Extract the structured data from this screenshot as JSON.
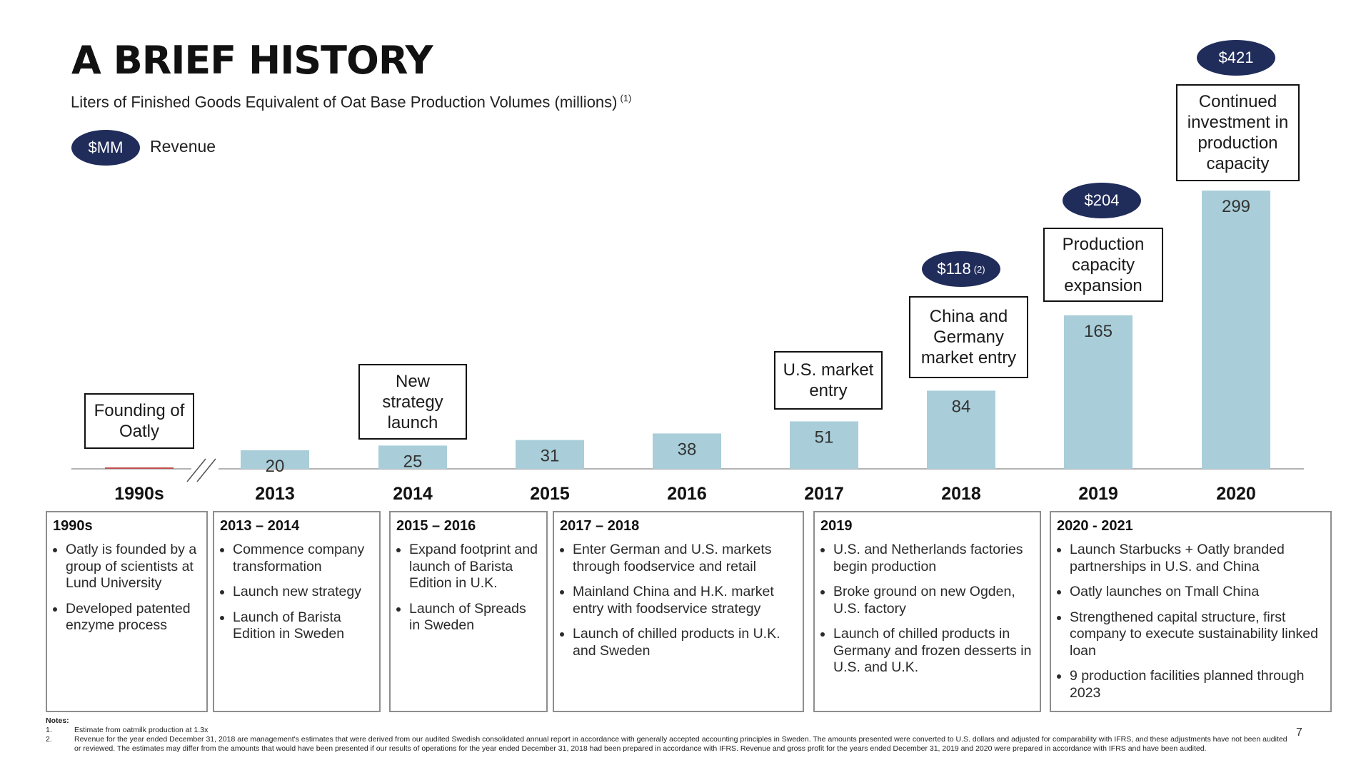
{
  "header": {
    "title": "A BRIEF HISTORY",
    "subtitle": "Liters of Finished Goods Equivalent of Oat Base Production Volumes (millions)",
    "subtitle_note": "(1)"
  },
  "legend": {
    "pill": "$MM",
    "label": "Revenue"
  },
  "chart_data": {
    "type": "bar",
    "categories": [
      "1990s",
      "2013",
      "2014",
      "2015",
      "2016",
      "2017",
      "2018",
      "2019",
      "2020"
    ],
    "values": [
      null,
      20,
      25,
      31,
      38,
      51,
      84,
      165,
      299
    ],
    "value_labels": [
      "",
      "20",
      "25",
      "31",
      "38",
      "51",
      "84",
      "165",
      "299"
    ],
    "ylim": [
      0,
      299
    ],
    "title": "",
    "xlabel": "",
    "ylabel": "",
    "axis_break_between": [
      "1990s",
      "2013"
    ],
    "bar_color": "#a9ced9",
    "revenue_color": "#202c5a",
    "revenue": [
      {
        "category": "2018",
        "label": "$118",
        "note": "(2)"
      },
      {
        "category": "2019",
        "label": "$204",
        "note": ""
      },
      {
        "category": "2020",
        "label": "$421",
        "note": ""
      }
    ],
    "milestones": [
      {
        "category": "1990s",
        "text": "Founding of Oatly"
      },
      {
        "category": "2014",
        "text": "New strategy launch"
      },
      {
        "category": "2017",
        "text": "U.S. market entry"
      },
      {
        "category": "2018",
        "text": "China and Germany market entry"
      },
      {
        "category": "2019",
        "text": "Production capacity expansion"
      },
      {
        "category": "2020",
        "text": "Continued investment in production capacity"
      }
    ]
  },
  "timeline": [
    {
      "title": "1990s",
      "bullets": [
        "Oatly is founded by a group of scientists at Lund University",
        "Developed patented enzyme process"
      ]
    },
    {
      "title": "2013 – 2014",
      "bullets": [
        "Commence company transformation",
        "Launch new strategy",
        "Launch of Barista Edition in Sweden"
      ]
    },
    {
      "title": "2015 – 2016",
      "bullets": [
        "Expand footprint and launch of Barista Edition in U.K.",
        "Launch of Spreads in Sweden"
      ]
    },
    {
      "title": "2017 – 2018",
      "bullets": [
        "Enter German and U.S. markets through foodservice and retail",
        "Mainland China and H.K. market entry with foodservice strategy",
        "Launch of chilled products in U.K. and Sweden"
      ]
    },
    {
      "title": "2019",
      "bullets": [
        "U.S. and Netherlands factories begin production",
        "Broke ground on new Ogden, U.S. factory",
        "Launch of chilled products in Germany and frozen desserts in U.S. and U.K."
      ]
    },
    {
      "title": "2020 - 2021",
      "bullets": [
        "Launch Starbucks + Oatly branded partnerships in U.S. and China",
        "Oatly launches on Tmall China",
        "Strengthened capital structure, first company to execute sustainability linked loan",
        "9 production facilities planned through 2023"
      ]
    }
  ],
  "notes": {
    "heading": "Notes:",
    "items": [
      {
        "num": "1.",
        "text": "Estimate from oatmilk production at 1.3x"
      },
      {
        "num": "2.",
        "text": "Revenue for the year ended December 31, 2018 are management's estimates that were derived from our audited Swedish consolidated annual report in accordance with generally accepted accounting principles in Sweden. The amounts presented were converted to U.S. dollars and adjusted for comparability with IFRS, and these adjustments have not been audited or reviewed. The estimates may differ from the amounts that would have been presented if our results of operations for the year ended December 31, 2018 had been prepared in accordance with IFRS. Revenue and gross profit for the years ended December 31, 2019 and 2020 were prepared in accordance with IFRS and have been audited."
      }
    ]
  },
  "page_number": "7"
}
